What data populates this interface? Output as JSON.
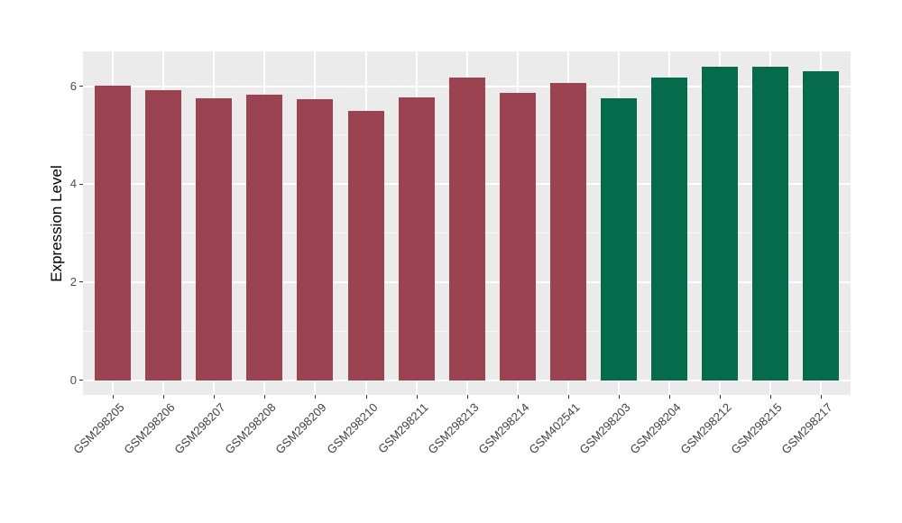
{
  "chart_data": {
    "type": "bar",
    "title": "",
    "xlabel": "",
    "ylabel": "Expression Level",
    "categories": [
      "GSM298205",
      "GSM298206",
      "GSM298207",
      "GSM298208",
      "GSM298209",
      "GSM298210",
      "GSM298211",
      "GSM298213",
      "GSM298214",
      "GSM402541",
      "GSM298203",
      "GSM298204",
      "GSM298212",
      "GSM298215",
      "GSM298217"
    ],
    "values": [
      6.02,
      5.92,
      5.76,
      5.84,
      5.74,
      5.51,
      5.78,
      6.18,
      5.88,
      6.07,
      5.76,
      6.18,
      6.4,
      6.4,
      6.32
    ],
    "bar_colors": [
      "#9C4351",
      "#9C4351",
      "#9C4351",
      "#9C4351",
      "#9C4351",
      "#9C4351",
      "#9C4351",
      "#9C4351",
      "#9C4351",
      "#9C4351",
      "#056B4B",
      "#056B4B",
      "#056B4B",
      "#056B4B",
      "#056B4B"
    ],
    "palette": {
      "maroon": "#9C4351",
      "green": "#056B4B"
    },
    "y_ticks": [
      0,
      2,
      4,
      6
    ],
    "y_minor_ticks": [
      1,
      3,
      5
    ],
    "ylim": [
      0,
      7.0
    ],
    "x_tick_rotation_deg": 45,
    "grid": "major and minor horizontal white lines, vertical white lines at category centers",
    "legend": "none",
    "panel_style": "ggplot-gray"
  },
  "colors": {
    "page_bg": "#FFFFFF",
    "panel_bg": "#EBEBEB",
    "grid_major": "#FFFFFF",
    "grid_minor": "#FFFFFF",
    "axis_text": "#4D4D4D",
    "axis_title": "#000000",
    "tick_mark": "#333333"
  }
}
